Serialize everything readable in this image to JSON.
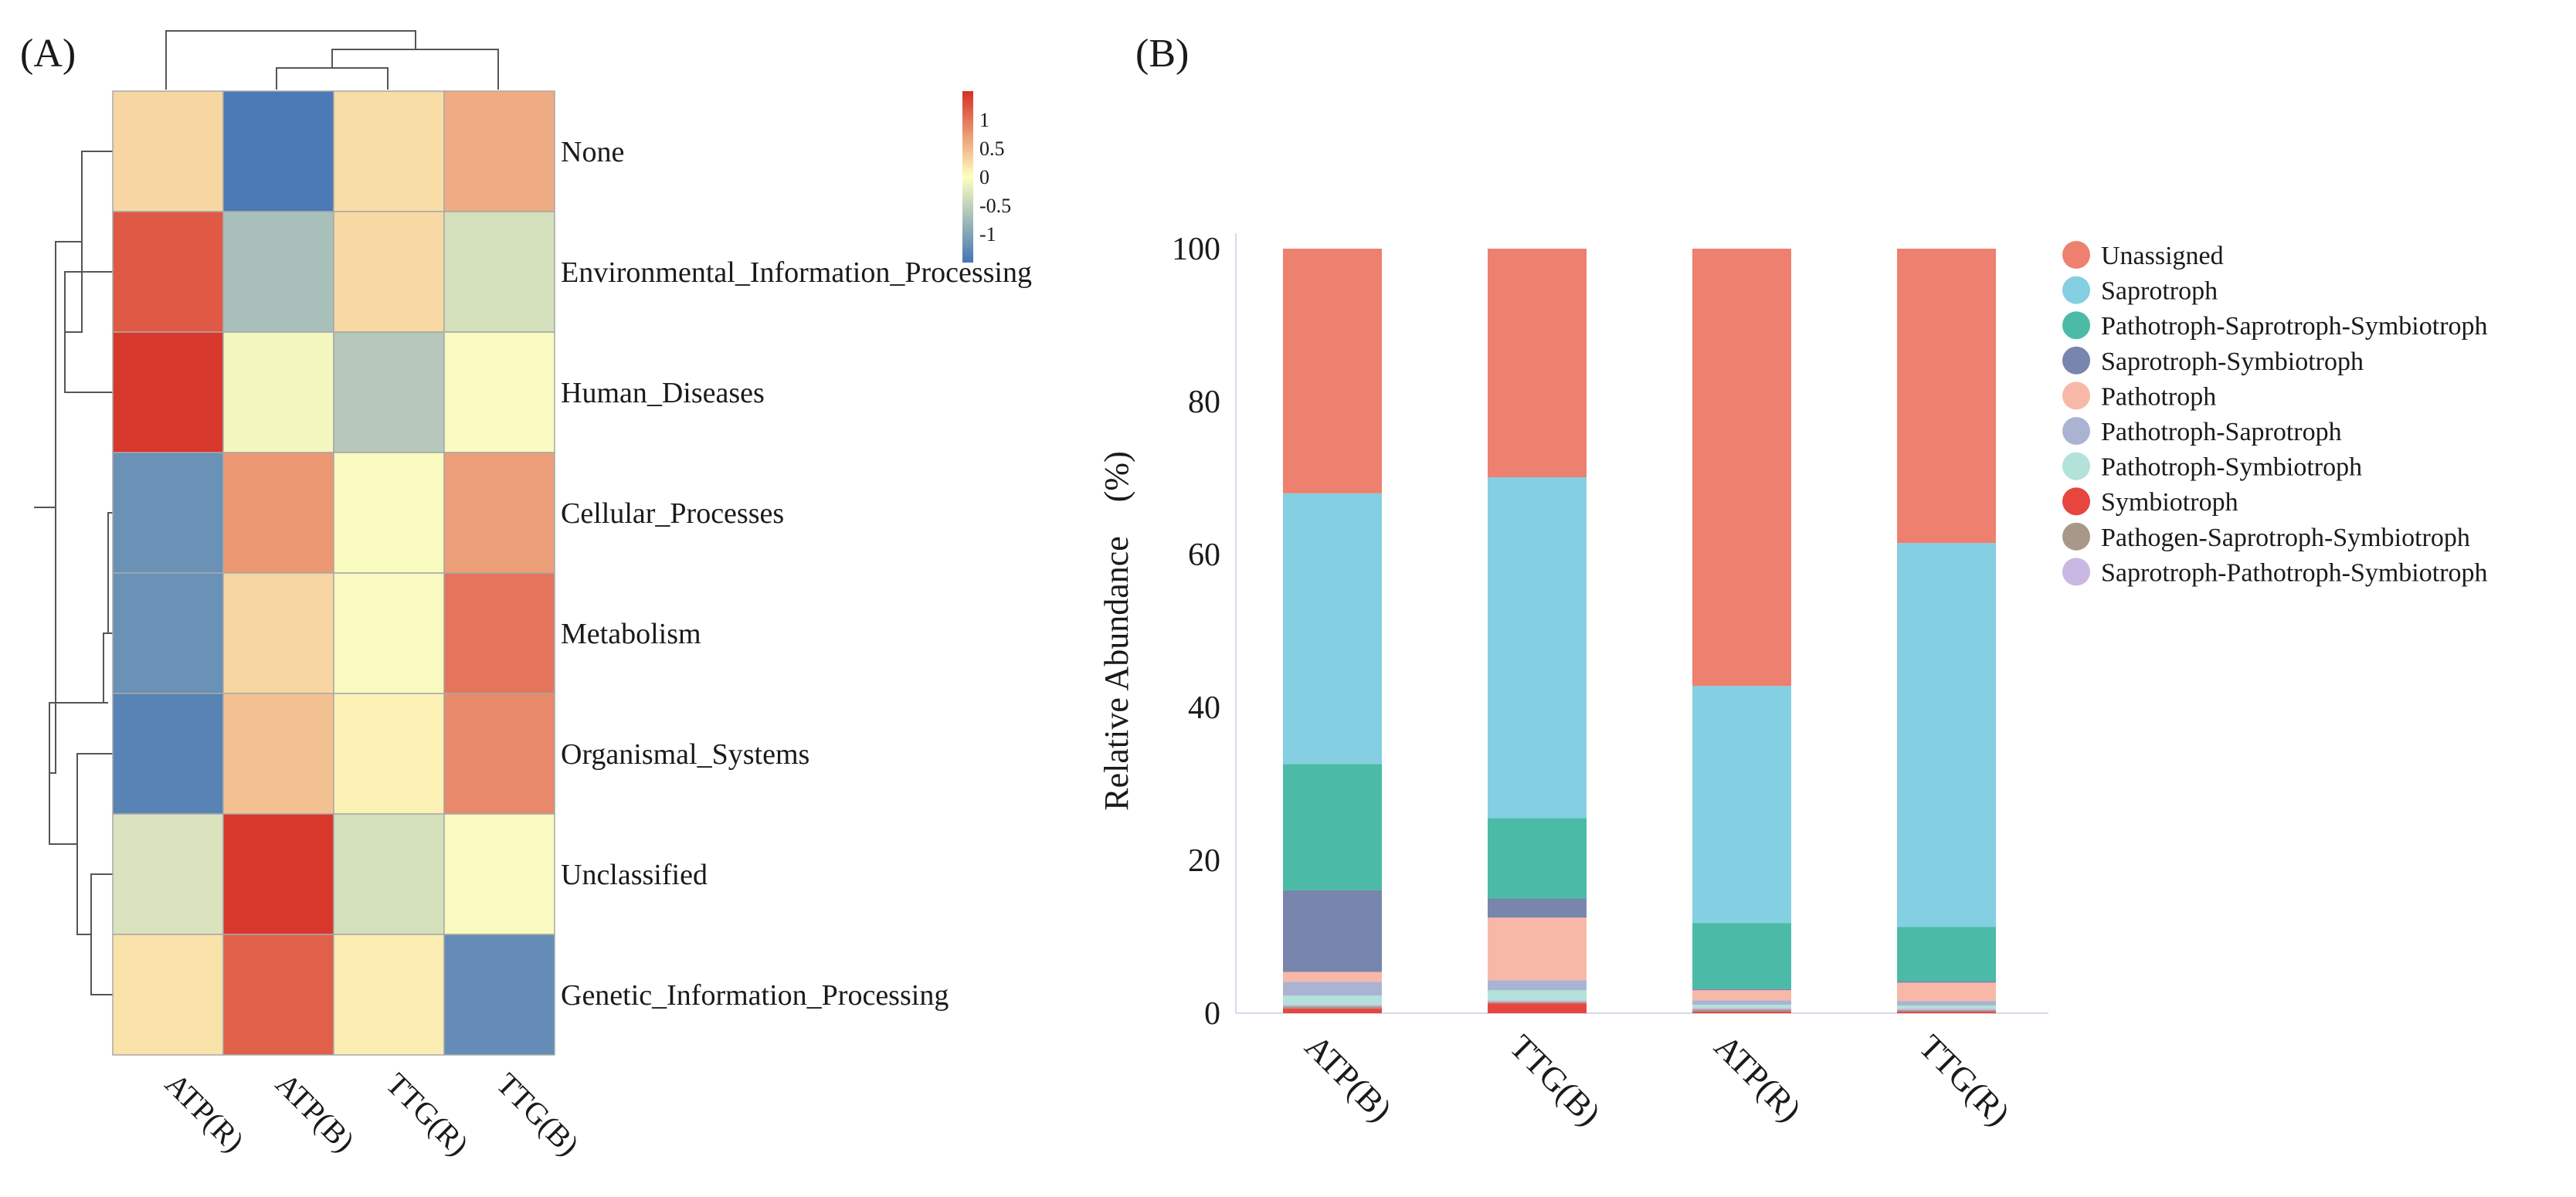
{
  "chart_data": [
    {
      "panel": "(A)",
      "type": "heatmap",
      "title": "",
      "columns": [
        "ATP(R)",
        "ATP(B)",
        "TTG(R)",
        "TTG(B)"
      ],
      "rows": [
        "None",
        "Environmental_Information_Processing",
        "Human_Diseases",
        "Cellular_Processes",
        "Metabolism",
        "Organismal_Systems",
        "Unclassified",
        "Genetic_Information_Processing"
      ],
      "values": [
        [
          0.3,
          -1.45,
          0.25,
          0.6
        ],
        [
          1.2,
          -0.7,
          0.28,
          -0.35
        ],
        [
          1.45,
          -0.1,
          -0.6,
          -0.05
        ],
        [
          -1.2,
          0.75,
          -0.05,
          0.7
        ],
        [
          -1.2,
          0.3,
          -0.05,
          1.0
        ],
        [
          -1.35,
          0.45,
          0.1,
          0.85
        ],
        [
          -0.3,
          1.45,
          -0.35,
          -0.05
        ],
        [
          0.2,
          1.15,
          0.12,
          -1.25
        ]
      ],
      "colorbar": {
        "ticks": [
          "1",
          "0.5",
          "0",
          "-0.5",
          "-1"
        ],
        "range": [
          -1.5,
          1.5
        ]
      },
      "colors": {
        "high": "#d73027",
        "mid": "#ffffbf",
        "low": "#4575b4"
      }
    },
    {
      "panel": "(B)",
      "type": "bar",
      "stacked": true,
      "categories": [
        "ATP(B)",
        "TTG(B)",
        "ATP(R)",
        "TTG(R)"
      ],
      "ylabel": "Relative Abundance　(%)",
      "yticks": [
        "0",
        "20",
        "40",
        "60",
        "80",
        "100"
      ],
      "ylim": [
        0,
        100
      ],
      "series": [
        {
          "name": "Symbiotroph",
          "color": "#e64540",
          "values": [
            0.6,
            1.3,
            0.2,
            0.2
          ]
        },
        {
          "name": "Pathogen-Saprotroph-Symbiotroph",
          "color": "#a89888",
          "values": [
            0.3,
            0.2,
            0.3,
            0.2
          ]
        },
        {
          "name": "Saprotroph-Pathotroph-Symbiotroph",
          "color": "#c8b8e2",
          "values": [
            0.2,
            0.2,
            0.2,
            0.2
          ]
        },
        {
          "name": "Pathotroph-Symbiotroph",
          "color": "#b2e2da",
          "values": [
            1.2,
            1.3,
            0.4,
            0.4
          ]
        },
        {
          "name": "Pathotroph-Saprotroph",
          "color": "#aab4d2",
          "values": [
            1.8,
            1.3,
            0.6,
            0.6
          ]
        },
        {
          "name": "Pathotroph",
          "color": "#f8b8a8",
          "values": [
            1.3,
            8.2,
            1.3,
            2.4
          ]
        },
        {
          "name": "Saprotroph-Symbiotroph",
          "color": "#7886ad",
          "values": [
            10.7,
            2.5,
            0.2,
            0.2
          ]
        },
        {
          "name": "Pathotroph-Saprotroph-Symbiotroph",
          "color": "#4bbba7",
          "values": [
            16.5,
            10.5,
            8.6,
            7.1
          ]
        },
        {
          "name": "Saprotroph",
          "color": "#84cfe2",
          "values": [
            35.4,
            44.6,
            31.0,
            50.2
          ]
        },
        {
          "name": "Unassigned",
          "color": "#ee8070",
          "values": [
            32.0,
            29.9,
            57.2,
            38.5
          ]
        }
      ],
      "legend": {
        "position": "right",
        "order": [
          "Unassigned",
          "Saprotroph",
          "Pathotroph-Saprotroph-Symbiotroph",
          "Saprotroph-Symbiotroph",
          "Pathotroph",
          "Pathotroph-Saprotroph",
          "Pathotroph-Symbiotroph",
          "Symbiotroph",
          "Pathogen-Saprotroph-Symbiotroph",
          "Saprotroph-Pathotroph-Symbiotroph"
        ]
      }
    }
  ]
}
